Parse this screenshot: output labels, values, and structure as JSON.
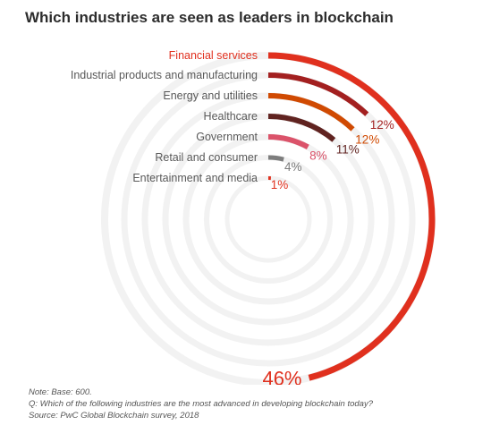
{
  "title": "Which industries are seen as leaders in blockchain",
  "chart_data": {
    "type": "radial-bar",
    "unit": "%",
    "categories": [
      "Financial services",
      "Industrial products and manufacturing",
      "Energy and utilities",
      "Healthcare",
      "Government",
      "Retail and consumer",
      "Entertainment and media"
    ],
    "values": [
      46,
      12,
      12,
      11,
      8,
      4,
      1
    ],
    "value_labels": [
      "46%",
      "12%",
      "12%",
      "11%",
      "8%",
      "4%",
      "1%"
    ],
    "colors": [
      "#e0301e",
      "#a32020",
      "#d04a02",
      "#602320",
      "#db536a",
      "#7d7d7d",
      "#e0301e"
    ],
    "label_colors": [
      "#e0301e",
      "#595959",
      "#595959",
      "#595959",
      "#595959",
      "#595959",
      "#595959"
    ],
    "value_label_colors": [
      "#e0301e",
      "#a32020",
      "#d04a02",
      "#602320",
      "#db536a",
      "#7d7d7d",
      "#e0301e"
    ],
    "track_color": "#f2f2f2",
    "max": 100
  },
  "notes": {
    "base": "Note: Base: 600.",
    "question": "Q: Which of the following industries are the most advanced in developing blockchain today?",
    "source": "Source: PwC Global Blockchain survey, 2018"
  }
}
